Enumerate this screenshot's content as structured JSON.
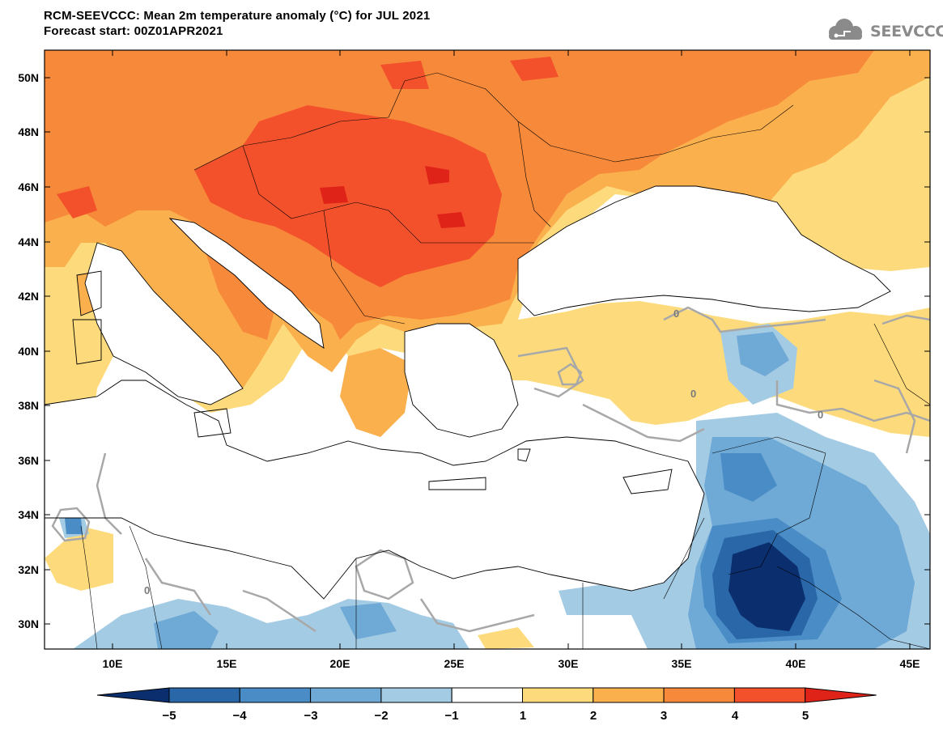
{
  "header": {
    "title": "RCM-SEEVCCC: Mean 2m temperature anomaly (°C) for JUL 2021",
    "subtitle": "Forecast start: 00Z01APR2021",
    "logo_text": "SEEVCCC"
  },
  "axes": {
    "lon_labels": [
      "10E",
      "15E",
      "20E",
      "25E",
      "30E",
      "35E",
      "40E",
      "45E"
    ],
    "lat_labels": [
      "50N",
      "48N",
      "46N",
      "44N",
      "42N",
      "40N",
      "38N",
      "36N",
      "34N",
      "32N",
      "30N"
    ]
  },
  "colorbar": {
    "labels": [
      "−5",
      "−4",
      "−3",
      "−2",
      "−1",
      "1",
      "2",
      "3",
      "4",
      "5"
    ],
    "colors": [
      "#0b2e6e",
      "#2a67a8",
      "#4a8dc6",
      "#6fa9d6",
      "#a4cbe4",
      "#ffffff",
      "#fddb7c",
      "#fbb04e",
      "#f7893a",
      "#f3512b",
      "#e02318"
    ]
  },
  "contour_label": "0"
}
